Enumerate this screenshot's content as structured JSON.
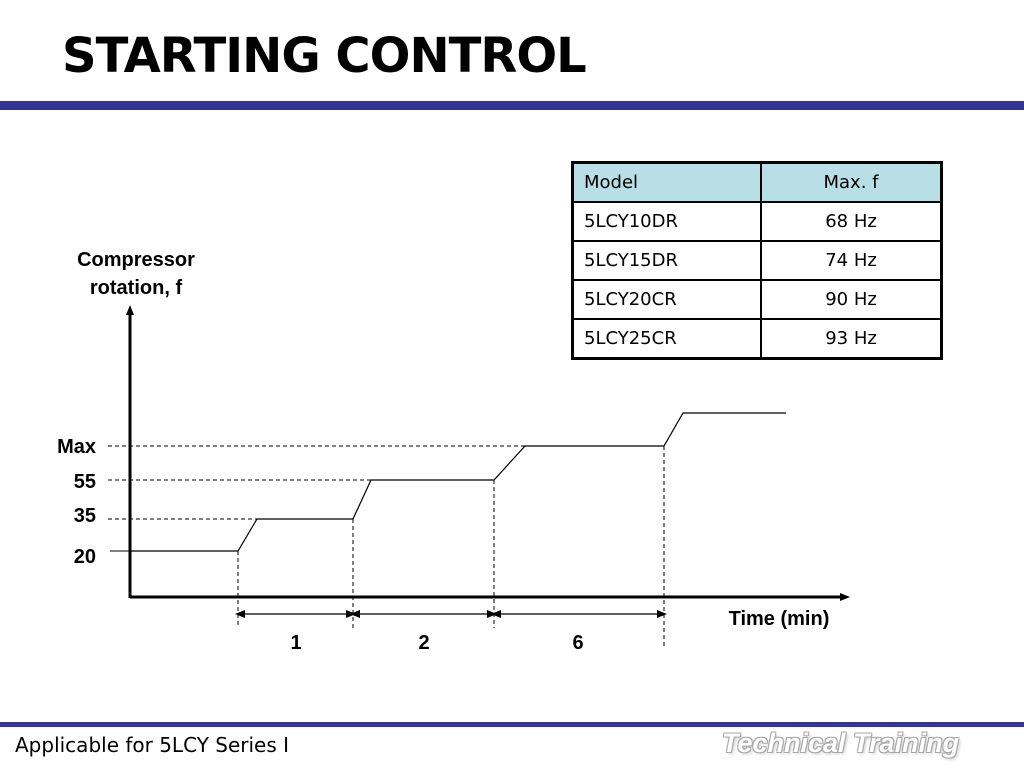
{
  "title": "STARTING CONTROL",
  "table": {
    "headers": [
      "Model",
      "Max. f"
    ],
    "rows": [
      [
        "5LCY10DR",
        "68 Hz"
      ],
      [
        "5LCY15DR",
        "74 Hz"
      ],
      [
        "5LCY20CR",
        "90 Hz"
      ],
      [
        "5LCY25CR",
        "93 Hz"
      ]
    ]
  },
  "diagram": {
    "y_axis_label_line1": "Compressor",
    "y_axis_label_line2": "rotation, f",
    "x_axis_label": "Time (min)",
    "levels": [
      "Max",
      "55",
      "35",
      "20"
    ],
    "interval_labels": [
      "1",
      "2",
      "6"
    ]
  },
  "footer": {
    "text": "Applicable for 5LCY Series I",
    "brand": "Technical Training"
  },
  "colors": {
    "accent_rule": "#333399",
    "table_header": "#b8dfe6"
  }
}
